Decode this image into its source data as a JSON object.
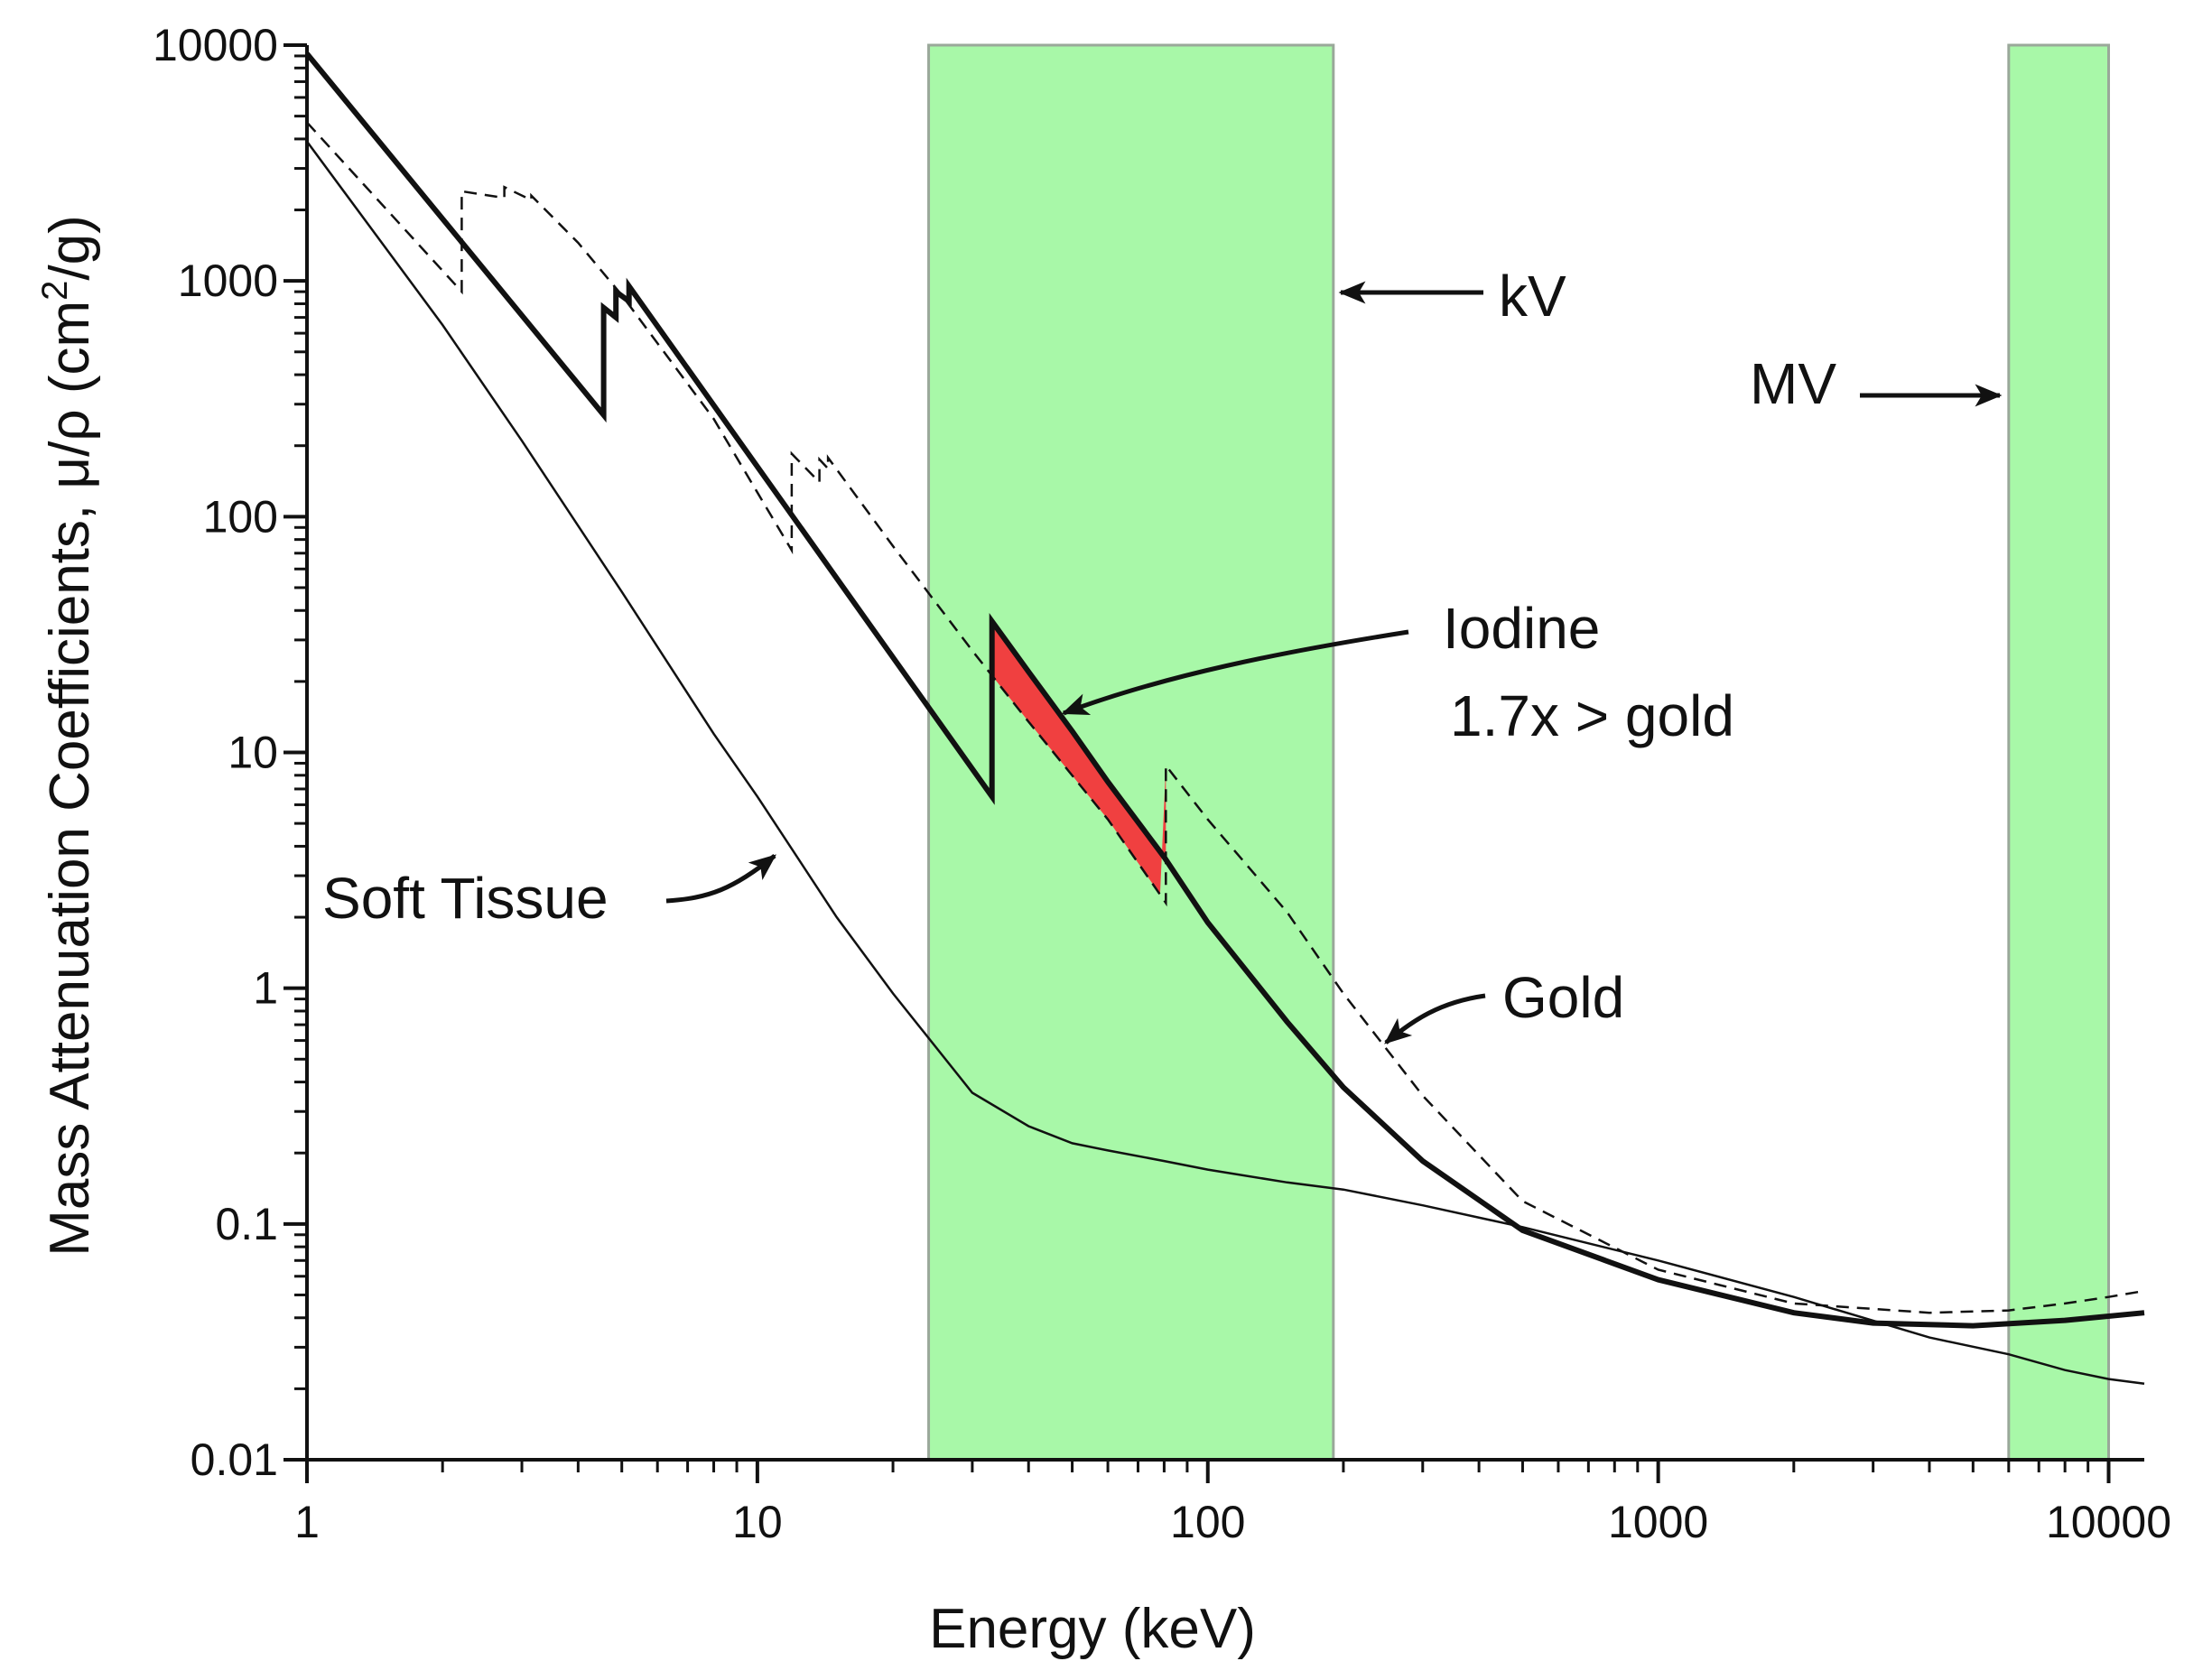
{
  "chart_data": {
    "type": "line",
    "xscale": "log",
    "yscale": "log",
    "xlabel": "Energy (keV)",
    "ylabel": {
      "main": "Mass Attenuation Coefficients, μ/ρ (cm",
      "sup": "2",
      "tail": "/g)"
    },
    "xlim": [
      1,
      12000
    ],
    "ylim": [
      0.01,
      10000
    ],
    "x_tick_labels": [
      "1",
      "10",
      "100",
      "1000",
      "10000"
    ],
    "y_tick_labels": [
      "0.01",
      "0.1",
      "1",
      "10",
      "100",
      "1000",
      "10000"
    ],
    "bands": [
      {
        "name": "kV",
        "x_start": 24,
        "x_end": 190,
        "color": "#a8f8a8"
      },
      {
        "name": "MV",
        "x_start": 6000,
        "x_end": 10000,
        "color": "#a8f8a8"
      }
    ],
    "series": [
      {
        "name": "Iodine",
        "style": "thick",
        "x": [
          1,
          4.557,
          4.557,
          4.852,
          4.852,
          5.188,
          5.188,
          33.17,
          33.17,
          40,
          50,
          60,
          80,
          100,
          150,
          200,
          300,
          500,
          1000,
          2000,
          3000,
          5000,
          8000,
          12000
        ],
        "y": [
          9200,
          270,
          770,
          700,
          900,
          820,
          950,
          6.5,
          36,
          22,
          12.3,
          7.5,
          3.6,
          1.9,
          0.72,
          0.38,
          0.185,
          0.094,
          0.058,
          0.042,
          0.038,
          0.037,
          0.039,
          0.042
        ]
      },
      {
        "name": "Gold",
        "style": "dashed",
        "x": [
          1,
          2.206,
          2.206,
          2.743,
          2.743,
          3.148,
          3.148,
          4,
          5,
          8,
          11.92,
          11.92,
          13.73,
          13.73,
          14.35,
          14.35,
          20,
          30,
          40,
          60,
          80.72,
          80.72,
          100,
          150,
          200,
          300,
          500,
          1000,
          2000,
          4000,
          6000,
          8000,
          10000,
          12000
        ],
        "y": [
          4700,
          900,
          2400,
          2250,
          2500,
          2200,
          2300,
          1450,
          870,
          260,
          72,
          185,
          140,
          175,
          160,
          178,
          75,
          27,
          13.5,
          5.2,
          2.3,
          8.8,
          5.2,
          2.1,
          0.95,
          0.35,
          0.125,
          0.064,
          0.046,
          0.042,
          0.043,
          0.046,
          0.049,
          0.052
        ]
      },
      {
        "name": "Soft Tissue",
        "style": "thin",
        "x": [
          1,
          2,
          3,
          5,
          8,
          10,
          15,
          20,
          30,
          40,
          50,
          60,
          80,
          100,
          150,
          200,
          300,
          500,
          1000,
          2000,
          4000,
          6000,
          8000,
          10000,
          12000
        ],
        "y": [
          3900,
          650,
          210,
          48,
          12,
          6.5,
          2,
          0.95,
          0.36,
          0.26,
          0.22,
          0.205,
          0.185,
          0.17,
          0.15,
          0.14,
          0.12,
          0.097,
          0.07,
          0.049,
          0.033,
          0.028,
          0.024,
          0.022,
          0.021
        ]
      }
    ],
    "highlight": {
      "name": "Iodine 1.7x > gold",
      "x_start": 33.17,
      "x_end": 80.72,
      "color": "#f04040"
    },
    "annotations": [
      {
        "id": "kv",
        "text": "kV"
      },
      {
        "id": "mv",
        "text": "MV"
      },
      {
        "id": "iodine1",
        "text": "Iodine"
      },
      {
        "id": "iodine2",
        "text": "1.7x > gold"
      },
      {
        "id": "tissue",
        "text": "Soft Tissue"
      },
      {
        "id": "gold",
        "text": "Gold"
      }
    ]
  }
}
